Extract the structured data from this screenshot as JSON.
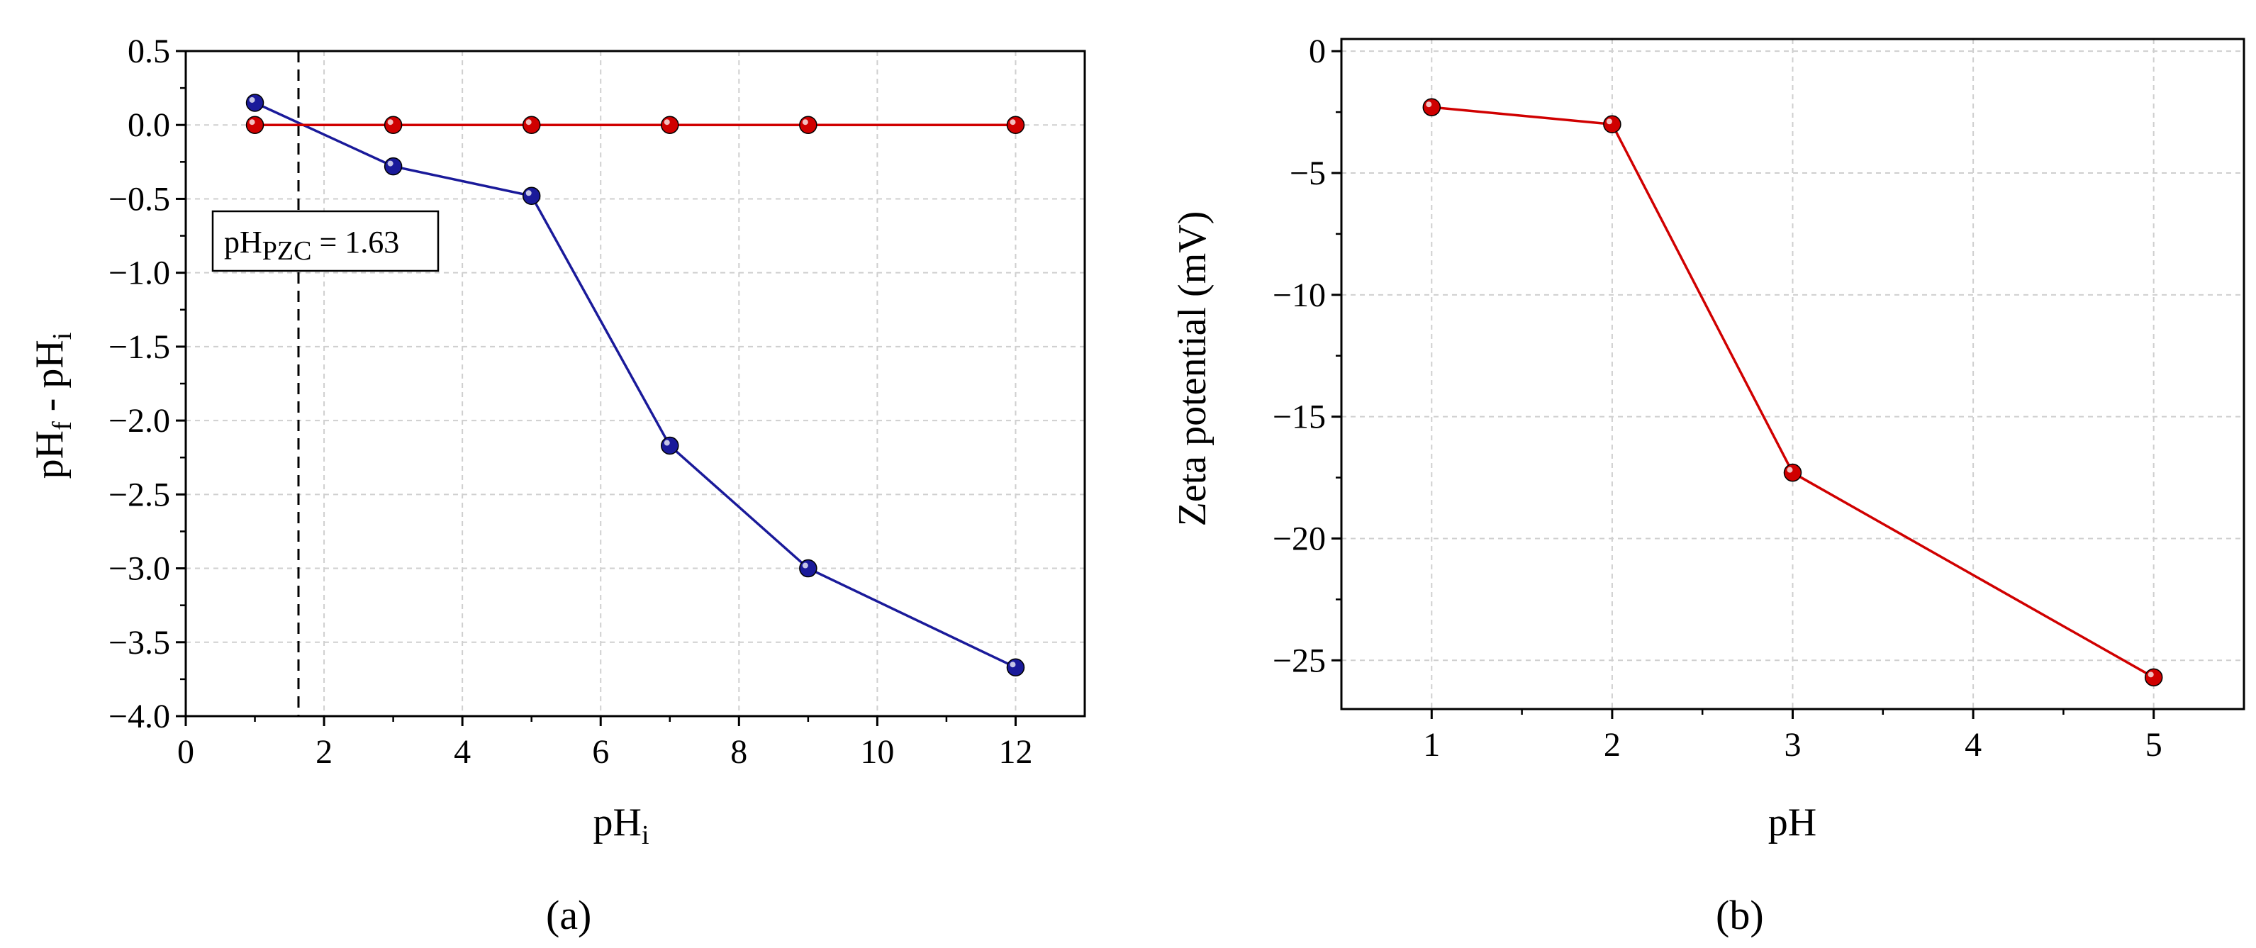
{
  "panels": {
    "a": {
      "label": "(a)",
      "xlabel": {
        "main": "pH",
        "sub": "i"
      },
      "ylabel": {
        "main1": "pH",
        "sub1": "f",
        "mid": " - pH",
        "sub2": "i"
      },
      "annotation": {
        "main": "pH",
        "sub": "PZC",
        "value": " = 1.63"
      }
    },
    "b": {
      "label": "(b)",
      "xlabel": "pH",
      "ylabel": "Zeta potential (mV)"
    }
  },
  "chart_data": [
    {
      "type": "line",
      "title": "",
      "xlabel": "pHi",
      "ylabel": "pHf - pHi",
      "xlim": [
        0,
        13
      ],
      "ylim": [
        -4.0,
        0.5
      ],
      "xticks": [
        0,
        2,
        4,
        6,
        8,
        10,
        12
      ],
      "xtick_labels": [
        "0",
        "2",
        "4",
        "6",
        "8",
        "10",
        "12"
      ],
      "yticks": [
        0.5,
        0.0,
        -0.5,
        -1.0,
        -1.5,
        -2.0,
        -2.5,
        -3.0,
        -3.5,
        -4.0
      ],
      "ytick_labels": [
        "0.5",
        "0.0",
        "−0.5",
        "−1.0",
        "−1.5",
        "−2.0",
        "−2.5",
        "−3.0",
        "−3.5",
        "−4.0"
      ],
      "grid": true,
      "series": [
        {
          "color": "#1a1a9a",
          "x": [
            1,
            3,
            5,
            7,
            9,
            12
          ],
          "y": [
            0.15,
            -0.28,
            -0.48,
            -2.17,
            -3.0,
            -3.67
          ]
        },
        {
          "color": "#d00000",
          "x": [
            1,
            3,
            5,
            7,
            9,
            12
          ],
          "y": [
            0.0,
            0.0,
            0.0,
            0.0,
            0.0,
            0.0
          ]
        }
      ],
      "reference_line": {
        "type": "vertical",
        "x": 1.63,
        "style": "dashed"
      },
      "annotations": [
        "pHPZC = 1.63"
      ]
    },
    {
      "type": "line",
      "title": "",
      "xlabel": "pH",
      "ylabel": "Zeta potential (mV)",
      "scale_note": "categorical x axis: 1, 2, 3, 4, 5 evenly spaced",
      "xlim": [
        0.5,
        5.5
      ],
      "ylim": [
        -27,
        0.5
      ],
      "xticks": [
        1,
        2,
        3,
        4,
        5
      ],
      "xtick_labels": [
        "1",
        "2",
        "3",
        "4",
        "5"
      ],
      "yticks": [
        0,
        -5,
        -10,
        -15,
        -20,
        -25
      ],
      "ytick_labels": [
        "0",
        "−5",
        "−10",
        "−15",
        "−20",
        "−25"
      ],
      "grid": true,
      "series": [
        {
          "color": "#d00000",
          "x": [
            1,
            2,
            3,
            5
          ],
          "y": [
            -2.3,
            -3.0,
            -17.3,
            -25.7
          ]
        }
      ]
    }
  ]
}
